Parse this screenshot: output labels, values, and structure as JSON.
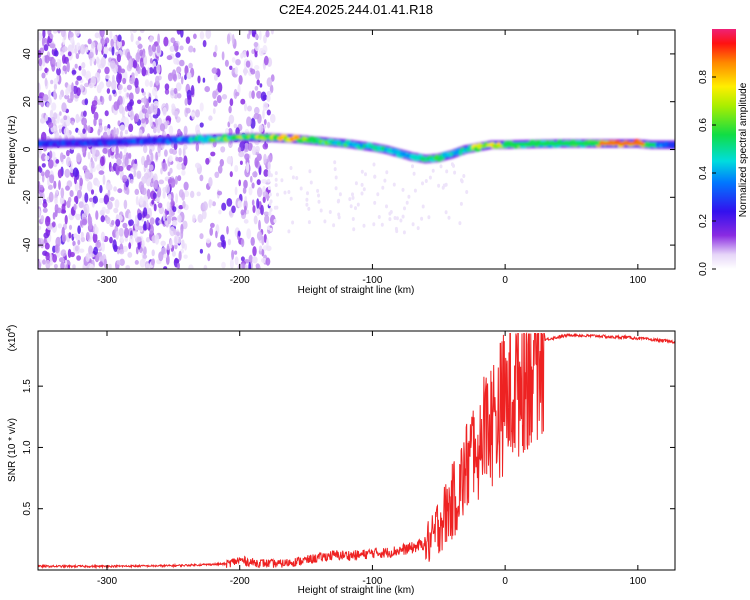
{
  "title": "C2E4.2025.244.01.41.R18",
  "colors": {
    "snr_line": "#ee2222",
    "frame": "#000000"
  },
  "chart_data": [
    {
      "type": "heatmap",
      "name": "spectrogram",
      "xlabel": "Height of straight line (km)",
      "ylabel": "Frequency (Hz)",
      "xlim": [
        -352,
        128
      ],
      "ylim": [
        -50,
        50
      ],
      "xticks": [
        -300,
        -200,
        -100,
        0,
        100
      ],
      "xtick_labels": [
        "-300",
        "-200",
        "-100",
        "0",
        "100"
      ],
      "yticks": [
        -40,
        -20,
        0,
        20,
        40
      ],
      "ytick_labels": [
        "-40",
        "-20",
        "0",
        "20",
        "40"
      ],
      "colorbar": {
        "label": "Normalized spectral amplitude",
        "range": [
          0,
          1
        ],
        "ticks": [
          0.0,
          0.2,
          0.4,
          0.6,
          0.8
        ],
        "tick_labels": [
          "0.0",
          "0.2",
          "0.4",
          "0.6",
          "0.8"
        ],
        "colormap": "rainbow (white-purple-blue-cyan-green-yellow-orange-red)"
      },
      "ridge": {
        "x": [
          -352,
          -300,
          -250,
          -220,
          -200,
          -180,
          -160,
          -140,
          -120,
          -100,
          -90,
          -80,
          -70,
          -60,
          -50,
          -40,
          -30,
          -20,
          -10,
          0,
          20,
          40,
          60,
          80,
          100,
          110,
          120,
          128
        ],
        "y": [
          2.5,
          3,
          4,
          4.5,
          5,
          5,
          4.5,
          3.5,
          2.5,
          1,
          0,
          -1.5,
          -3,
          -4,
          -3.5,
          -2,
          0,
          1,
          2,
          2,
          2.3,
          2.5,
          2.5,
          2.5,
          2.5,
          2,
          2,
          2
        ],
        "relative_amplitude": [
          0.3,
          0.3,
          0.35,
          0.6,
          0.7,
          0.7,
          0.8,
          0.6,
          0.55,
          0.5,
          0.55,
          0.5,
          0.45,
          0.6,
          0.6,
          0.55,
          0.5,
          0.8,
          0.75,
          0.7,
          0.55,
          0.5,
          0.6,
          0.9,
          0.9,
          0.5,
          0.35,
          0.35
        ]
      },
      "noise_region_x": [
        -352,
        -180
      ]
    },
    {
      "type": "line",
      "name": "snr",
      "xlabel": "Height of straight line (km)",
      "ylabel": "SNR (10 * v/v)",
      "exponent_label": "(x10",
      "exponent_value": "4",
      "exponent_close": ")",
      "xlim": [
        -352,
        128
      ],
      "ylim": [
        0,
        1.95
      ],
      "xticks": [
        -300,
        -200,
        -100,
        0,
        100
      ],
      "xtick_labels": [
        "-300",
        "-200",
        "-100",
        "0",
        "100"
      ],
      "yticks": [
        0.5,
        1.0,
        1.5
      ],
      "ytick_labels": [
        "0.5",
        "1.0",
        "1.5"
      ],
      "series": [
        {
          "name": "SNR",
          "x": [
            -352,
            -300,
            -250,
            -210,
            -200,
            -190,
            -170,
            -150,
            -130,
            -110,
            -100,
            -90,
            -80,
            -70,
            -60,
            -55,
            -50,
            -45,
            -40,
            -35,
            -30,
            -25,
            -20,
            -15,
            -10,
            -5,
            0,
            5,
            10,
            15,
            20,
            25,
            30,
            40,
            50,
            60,
            70,
            80,
            90,
            100,
            110,
            120,
            128
          ],
          "y": [
            0.03,
            0.03,
            0.035,
            0.05,
            0.08,
            0.06,
            0.05,
            0.08,
            0.12,
            0.12,
            0.14,
            0.14,
            0.16,
            0.18,
            0.22,
            0.24,
            0.38,
            0.45,
            0.55,
            0.65,
            0.8,
            0.95,
            1.05,
            1.15,
            1.2,
            1.3,
            1.38,
            1.45,
            1.55,
            1.65,
            1.72,
            1.8,
            1.88,
            1.9,
            1.92,
            1.91,
            1.91,
            1.9,
            1.9,
            1.89,
            1.88,
            1.87,
            1.86
          ]
        }
      ]
    }
  ]
}
